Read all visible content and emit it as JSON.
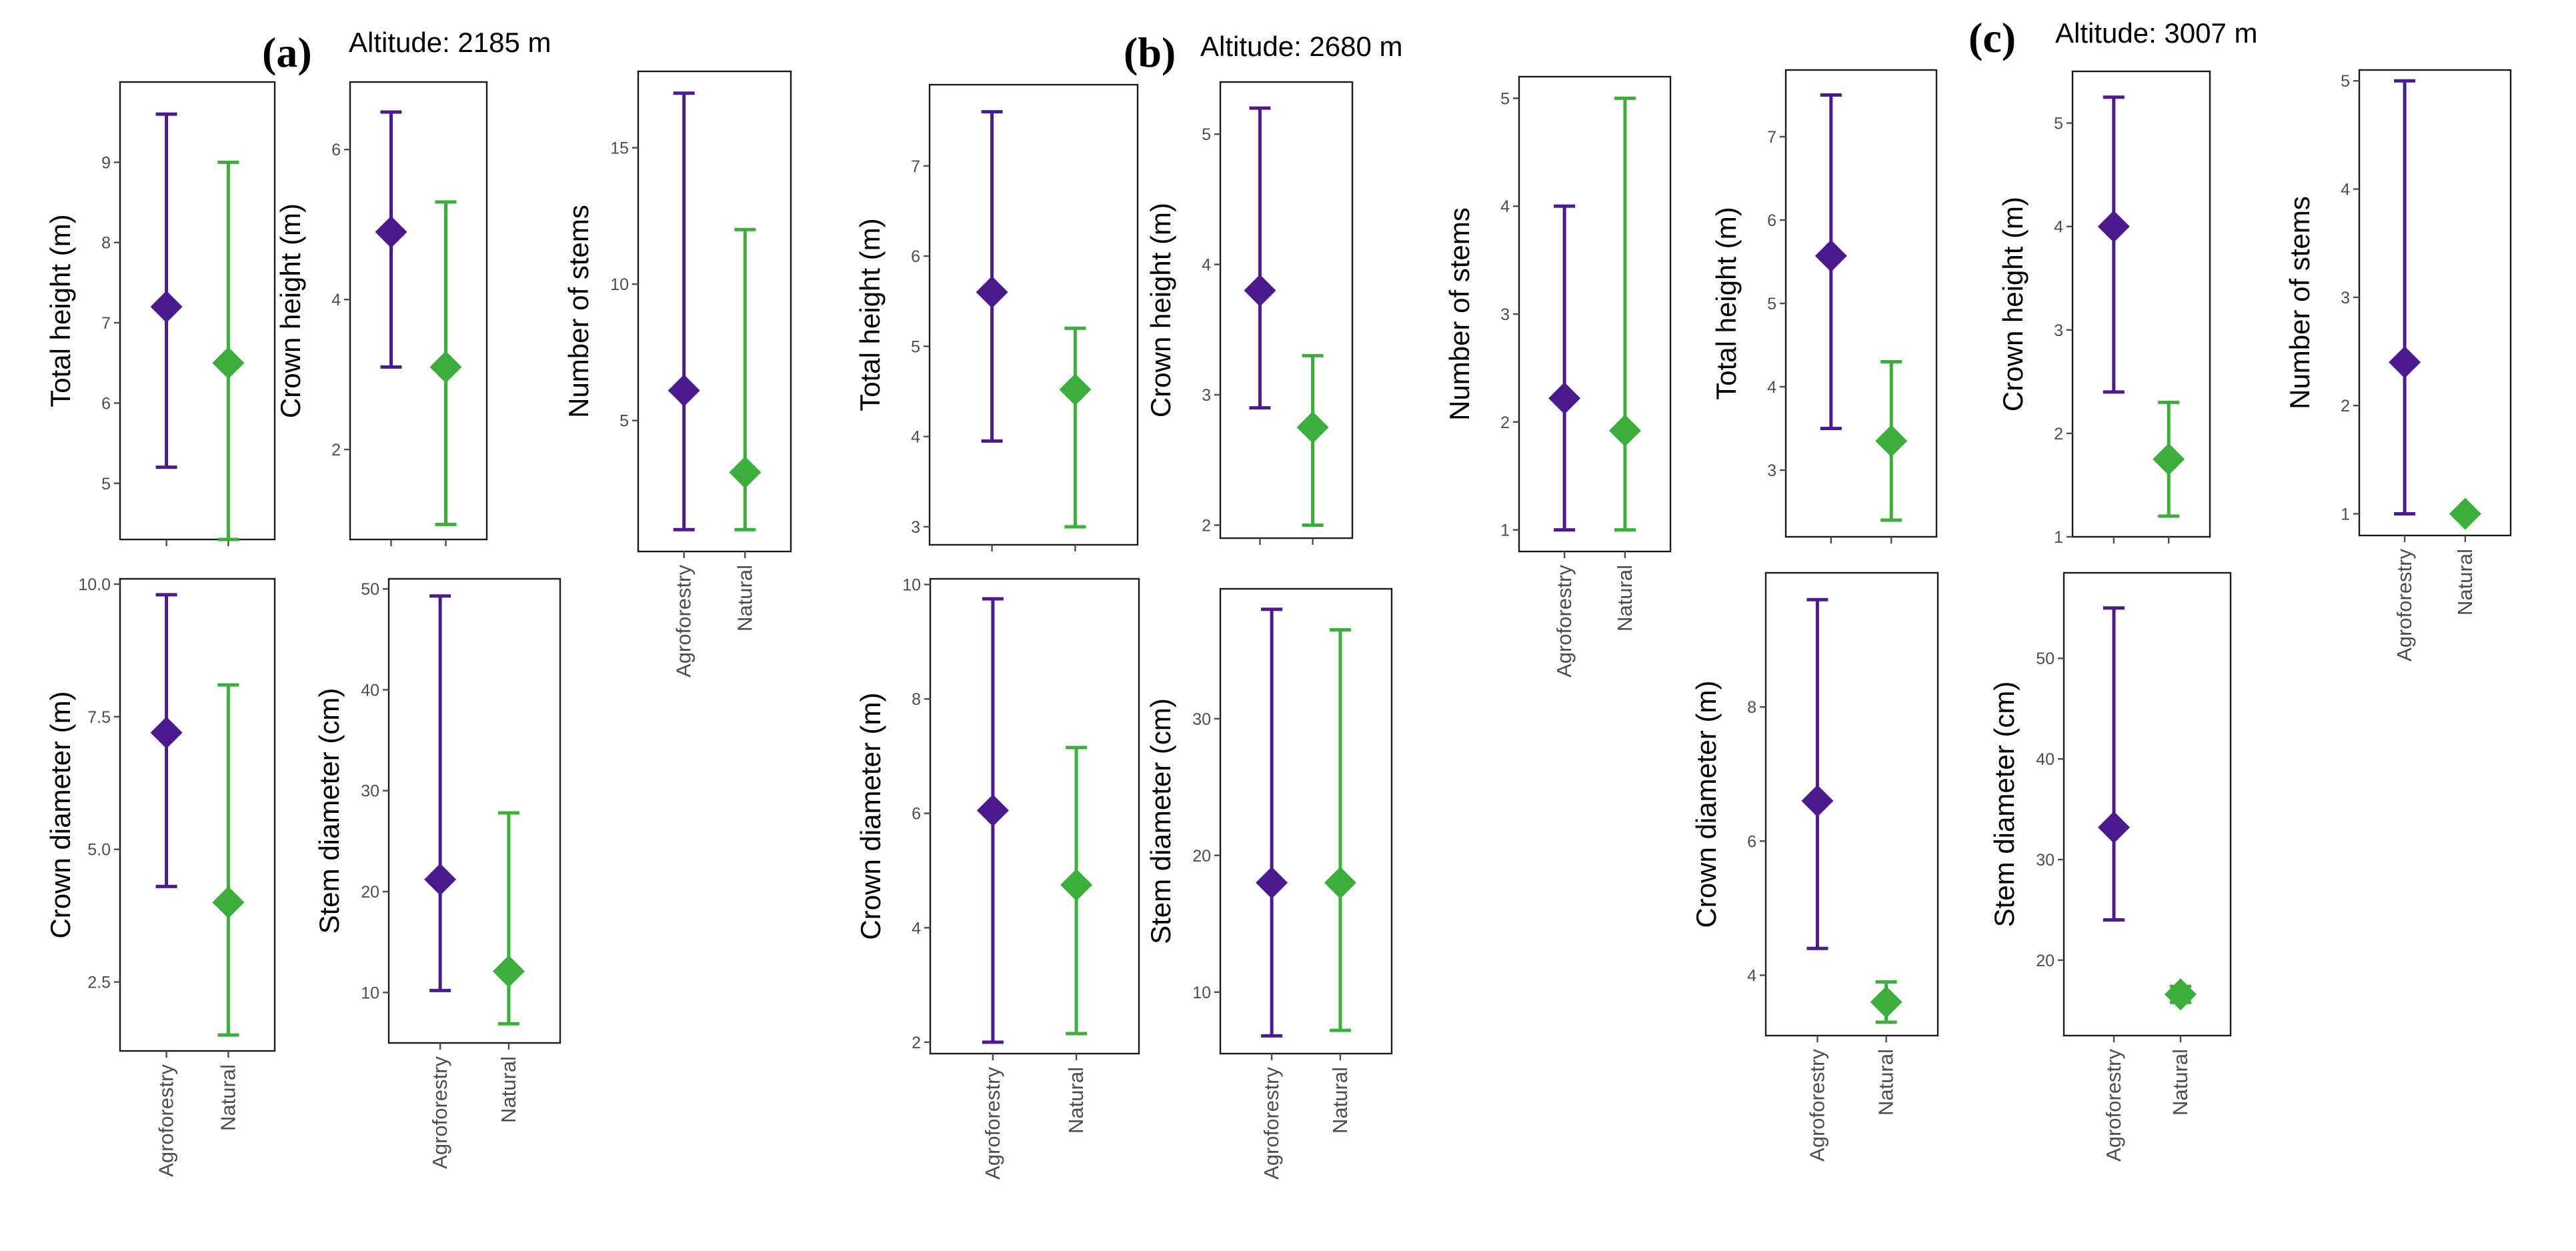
{
  "colors": {
    "agroforestry": "#4B1A8C",
    "natural": "#3BAE3B",
    "frame": "#1a1a1a",
    "tick": "#4d4d4d"
  },
  "groups": [
    "Agroforestry",
    "Natural"
  ],
  "panels": [
    {
      "label": "(a)",
      "altitude": "Altitude: 2185 m"
    },
    {
      "label": "(b)",
      "altitude": "Altitude: 2680 m"
    },
    {
      "label": "(c)",
      "altitude": "Altitude: 3007 m"
    }
  ],
  "chart_data": [
    {
      "type": "errorbar",
      "panel": "a",
      "ylabel": "Total height (m)",
      "ylim": [
        4.3,
        10.0
      ],
      "ticks": [
        5,
        6,
        7,
        8,
        9
      ],
      "tick_labels": [
        "5",
        "6",
        "7",
        "8",
        "9"
      ],
      "series": [
        {
          "name": "Agroforestry",
          "mean": 7.2,
          "min": 5.2,
          "max": 9.6
        },
        {
          "name": "Natural",
          "mean": 6.5,
          "min": 4.3,
          "max": 9.0
        }
      ],
      "show_xlabels": false
    },
    {
      "type": "errorbar",
      "panel": "a",
      "ylabel": "Crown height (m)",
      "ylim": [
        0.8,
        6.9
      ],
      "ticks": [
        2,
        4,
        6
      ],
      "tick_labels": [
        "2",
        "4",
        "6"
      ],
      "series": [
        {
          "name": "Agroforestry",
          "mean": 4.9,
          "min": 3.1,
          "max": 6.5
        },
        {
          "name": "Natural",
          "mean": 3.1,
          "min": 1.0,
          "max": 5.3
        }
      ],
      "show_xlabels": false
    },
    {
      "type": "errorbar",
      "panel": "a",
      "ylabel": "Number of stems",
      "ylim": [
        0.2,
        17.8
      ],
      "ticks": [
        5,
        10,
        15
      ],
      "tick_labels": [
        "5",
        "10",
        "15"
      ],
      "series": [
        {
          "name": "Agroforestry",
          "mean": 6.1,
          "min": 1.0,
          "max": 17.0
        },
        {
          "name": "Natural",
          "mean": 3.1,
          "min": 1.0,
          "max": 12.0
        }
      ],
      "show_xlabels": true
    },
    {
      "type": "errorbar",
      "panel": "a",
      "ylabel": "Crown diameter (m)",
      "ylim": [
        1.2,
        10.1
      ],
      "ticks": [
        2.5,
        5.0,
        7.5,
        10.0
      ],
      "tick_labels": [
        "2.5",
        "5.0",
        "7.5",
        "10.0"
      ],
      "series": [
        {
          "name": "Agroforestry",
          "mean": 7.2,
          "min": 4.3,
          "max": 9.8
        },
        {
          "name": "Natural",
          "mean": 4.0,
          "min": 1.5,
          "max": 8.1
        }
      ],
      "show_xlabels": true
    },
    {
      "type": "errorbar",
      "panel": "a",
      "ylabel": "Stem diameter (cm)",
      "ylim": [
        5.0,
        51.0
      ],
      "ticks": [
        10,
        20,
        30,
        40,
        50
      ],
      "tick_labels": [
        "10",
        "20",
        "30",
        "40",
        "50"
      ],
      "series": [
        {
          "name": "Agroforestry",
          "mean": 21.2,
          "min": 10.2,
          "max": 49.3
        },
        {
          "name": "Natural",
          "mean": 12.1,
          "min": 6.9,
          "max": 27.8
        }
      ],
      "show_xlabels": true
    },
    {
      "type": "errorbar",
      "panel": "b",
      "ylabel": "Total height (m)",
      "ylim": [
        2.8,
        7.9
      ],
      "ticks": [
        3,
        4,
        5,
        6,
        7
      ],
      "tick_labels": [
        "3",
        "4",
        "5",
        "6",
        "7"
      ],
      "series": [
        {
          "name": "Agroforestry",
          "mean": 5.6,
          "min": 3.95,
          "max": 7.6
        },
        {
          "name": "Natural",
          "mean": 4.52,
          "min": 3.0,
          "max": 5.2
        }
      ],
      "show_xlabels": false
    },
    {
      "type": "errorbar",
      "panel": "b",
      "ylabel": "Crown height (m)",
      "ylim": [
        1.9,
        5.4
      ],
      "ticks": [
        2,
        3,
        4,
        5
      ],
      "tick_labels": [
        "2",
        "3",
        "4",
        "5"
      ],
      "series": [
        {
          "name": "Agroforestry",
          "mean": 3.8,
          "min": 2.9,
          "max": 5.2
        },
        {
          "name": "Natural",
          "mean": 2.75,
          "min": 2.0,
          "max": 3.3
        }
      ],
      "show_xlabels": false
    },
    {
      "type": "errorbar",
      "panel": "b",
      "ylabel": "Number of stems",
      "ylim": [
        0.8,
        5.2
      ],
      "ticks": [
        1,
        2,
        3,
        4,
        5
      ],
      "tick_labels": [
        "1",
        "2",
        "3",
        "4",
        "5"
      ],
      "series": [
        {
          "name": "Agroforestry",
          "mean": 2.22,
          "min": 1.0,
          "max": 4.0
        },
        {
          "name": "Natural",
          "mean": 1.92,
          "min": 1.0,
          "max": 5.0
        }
      ],
      "show_xlabels": true
    },
    {
      "type": "errorbar",
      "panel": "b",
      "ylabel": "Crown diameter (m)",
      "ylim": [
        1.8,
        10.1
      ],
      "ticks": [
        2,
        4,
        6,
        8,
        10
      ],
      "tick_labels": [
        "2",
        "4",
        "6",
        "8",
        "10"
      ],
      "series": [
        {
          "name": "Agroforestry",
          "mean": 6.05,
          "min": 2.0,
          "max": 9.75
        },
        {
          "name": "Natural",
          "mean": 4.75,
          "min": 2.15,
          "max": 7.15
        }
      ],
      "show_xlabels": true
    },
    {
      "type": "errorbar",
      "panel": "b",
      "ylabel": "Stem diameter (cm)",
      "ylim": [
        5.5,
        39.5
      ],
      "ticks": [
        10,
        20,
        30
      ],
      "tick_labels": [
        "10",
        "20",
        "30"
      ],
      "series": [
        {
          "name": "Agroforestry",
          "mean": 18.0,
          "min": 6.8,
          "max": 38.0
        },
        {
          "name": "Natural",
          "mean": 18.0,
          "min": 7.2,
          "max": 36.5
        }
      ],
      "show_xlabels": true
    },
    {
      "type": "errorbar",
      "panel": "c",
      "ylabel": "Total height (m)",
      "ylim": [
        2.2,
        7.8
      ],
      "ticks": [
        3,
        4,
        5,
        6,
        7
      ],
      "tick_labels": [
        "3",
        "4",
        "5",
        "6",
        "7"
      ],
      "series": [
        {
          "name": "Agroforestry",
          "mean": 5.57,
          "min": 3.5,
          "max": 7.5
        },
        {
          "name": "Natural",
          "mean": 3.35,
          "min": 2.4,
          "max": 4.3
        }
      ],
      "show_xlabels": false
    },
    {
      "type": "errorbar",
      "panel": "c",
      "ylabel": "Crown height (m)",
      "ylim": [
        1.0,
        5.5
      ],
      "ticks": [
        1,
        2,
        3,
        4,
        5
      ],
      "tick_labels": [
        "1",
        "2",
        "3",
        "4",
        "5"
      ],
      "series": [
        {
          "name": "Agroforestry",
          "mean": 4.0,
          "min": 2.4,
          "max": 5.25
        },
        {
          "name": "Natural",
          "mean": 1.75,
          "min": 1.2,
          "max": 2.3
        }
      ],
      "show_xlabels": false
    },
    {
      "type": "errorbar",
      "panel": "c",
      "ylabel": "Number of stems",
      "ylim": [
        0.8,
        5.1
      ],
      "ticks": [
        1,
        2,
        3,
        4,
        5
      ],
      "tick_labels": [
        "1",
        "2",
        "3",
        "4",
        "5"
      ],
      "series": [
        {
          "name": "Agroforestry",
          "mean": 2.4,
          "min": 1.0,
          "max": 5.0
        },
        {
          "name": "Natural",
          "mean": 1.0,
          "min": 1.0,
          "max": 1.0
        }
      ],
      "show_xlabels": true
    },
    {
      "type": "errorbar",
      "panel": "c",
      "ylabel": "Crown diameter (m)",
      "ylim": [
        3.1,
        10.0
      ],
      "ticks": [
        4,
        6,
        8
      ],
      "tick_labels": [
        "4",
        "6",
        "8"
      ],
      "series": [
        {
          "name": "Agroforestry",
          "mean": 6.6,
          "min": 4.4,
          "max": 9.6
        },
        {
          "name": "Natural",
          "mean": 3.6,
          "min": 3.3,
          "max": 3.9
        }
      ],
      "show_xlabels": true
    },
    {
      "type": "errorbar",
      "panel": "c",
      "ylabel": "Stem diameter (cm)",
      "ylim": [
        12.5,
        58.5
      ],
      "ticks": [
        20,
        30,
        40,
        50
      ],
      "tick_labels": [
        "20",
        "30",
        "40",
        "50"
      ],
      "series": [
        {
          "name": "Agroforestry",
          "mean": 33.2,
          "min": 24.0,
          "max": 55.0
        },
        {
          "name": "Natural",
          "mean": 16.6,
          "min": 15.8,
          "max": 17.4
        }
      ],
      "show_xlabels": true
    }
  ]
}
